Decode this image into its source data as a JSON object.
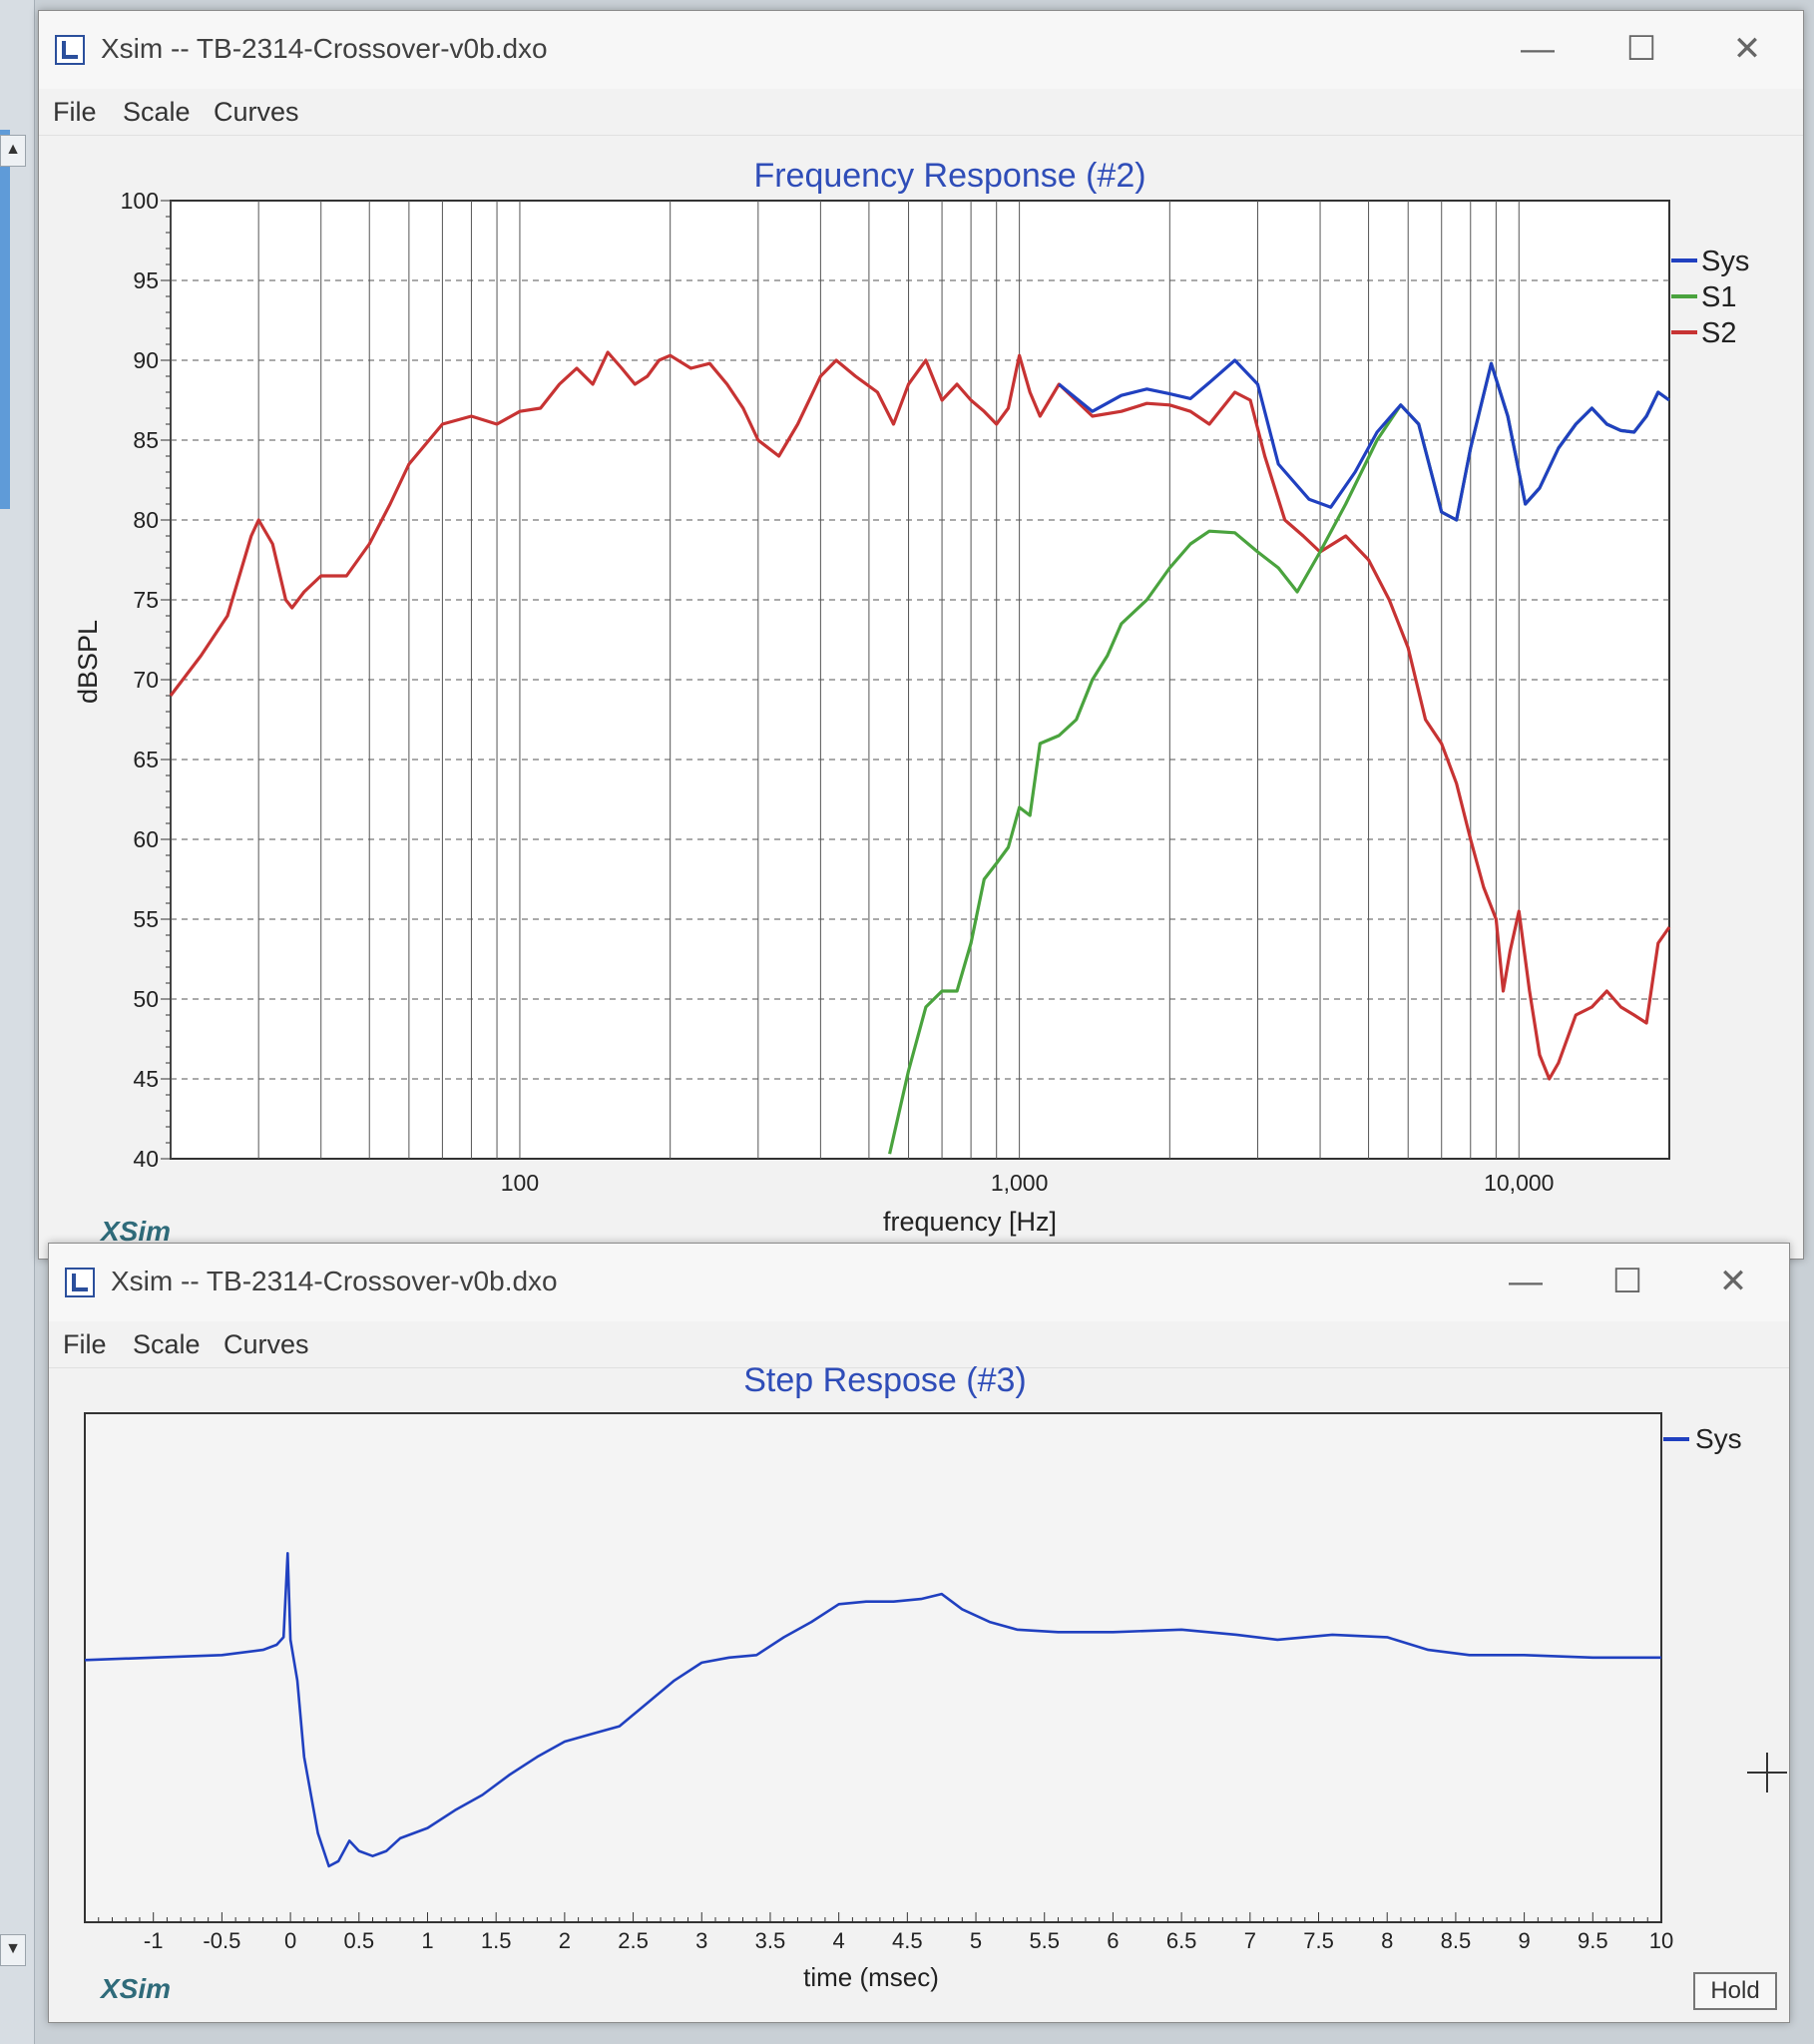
{
  "window1": {
    "title": "Xsim -- TB-2314-Crossover-v0b.dxo",
    "controls": {
      "minimize": "—",
      "maximize": "☐",
      "close": "✕"
    },
    "menu": {
      "file": "File",
      "scale": "Scale",
      "curves": "Curves"
    }
  },
  "window2": {
    "title": "Xsim -- TB-2314-Crossover-v0b.dxo",
    "controls": {
      "minimize": "—",
      "maximize": "☐",
      "close": "✕"
    },
    "menu": {
      "file": "File",
      "scale": "Scale",
      "curves": "Curves"
    },
    "hold_label": "Hold"
  },
  "colors": {
    "sys": "#2040c0",
    "s1": "#4aa33e",
    "s2": "#c73333",
    "title": "#2f4db8",
    "brand": "#2f6b7a"
  },
  "chart_data": [
    {
      "type": "line",
      "title": "Frequency Response (#2)",
      "xlabel": "frequency [Hz]",
      "ylabel": "dBSPL",
      "brand": "XSim",
      "x_scale": "log",
      "xlim": [
        20,
        20000
      ],
      "ylim": [
        40,
        100
      ],
      "grid": true,
      "legend_position": "right",
      "x_tick_labels": [
        "100",
        "1,000",
        "10,000"
      ],
      "y_ticks": [
        40,
        45,
        50,
        55,
        60,
        65,
        70,
        75,
        80,
        85,
        90,
        95,
        100
      ],
      "series": [
        {
          "name": "Sys",
          "points": [
            [
              1200,
              88.5
            ],
            [
              1400,
              86.8
            ],
            [
              1600,
              87.8
            ],
            [
              1800,
              88.2
            ],
            [
              2000,
              87.9
            ],
            [
              2200,
              87.6
            ],
            [
              2400,
              88.6
            ],
            [
              2700,
              90.0
            ],
            [
              3000,
              88.5
            ],
            [
              3300,
              83.5
            ],
            [
              3800,
              81.3
            ],
            [
              4200,
              80.8
            ],
            [
              4700,
              83.0
            ],
            [
              5200,
              85.5
            ],
            [
              5800,
              87.2
            ],
            [
              6300,
              86.0
            ],
            [
              7000,
              80.5
            ],
            [
              7500,
              80.0
            ],
            [
              8000,
              84.5
            ],
            [
              8800,
              89.8
            ],
            [
              9500,
              86.5
            ],
            [
              10300,
              81.0
            ],
            [
              11000,
              82.0
            ],
            [
              12000,
              84.5
            ],
            [
              13000,
              86.0
            ],
            [
              14000,
              87.0
            ],
            [
              15000,
              86.0
            ],
            [
              16000,
              85.6
            ],
            [
              17000,
              85.5
            ],
            [
              18000,
              86.5
            ],
            [
              19000,
              88.0
            ],
            [
              20000,
              87.5
            ]
          ]
        },
        {
          "name": "S1",
          "points": [
            [
              550,
              40.3
            ],
            [
              600,
              45.5
            ],
            [
              650,
              49.5
            ],
            [
              700,
              50.5
            ],
            [
              750,
              50.5
            ],
            [
              800,
              53.5
            ],
            [
              850,
              57.5
            ],
            [
              900,
              58.5
            ],
            [
              950,
              59.5
            ],
            [
              1000,
              62.0
            ],
            [
              1050,
              61.5
            ],
            [
              1100,
              66.0
            ],
            [
              1200,
              66.5
            ],
            [
              1300,
              67.5
            ],
            [
              1400,
              70.0
            ],
            [
              1500,
              71.5
            ],
            [
              1600,
              73.5
            ],
            [
              1800,
              75.0
            ],
            [
              2000,
              77.0
            ],
            [
              2200,
              78.5
            ],
            [
              2400,
              79.3
            ],
            [
              2700,
              79.2
            ],
            [
              3000,
              78.0
            ],
            [
              3300,
              77.0
            ],
            [
              3600,
              75.5
            ],
            [
              4000,
              78.0
            ],
            [
              4500,
              81.0
            ],
            [
              5200,
              85.0
            ],
            [
              5800,
              87.2
            ],
            [
              6300,
              86.0
            ],
            [
              7000,
              80.5
            ],
            [
              7500,
              80.0
            ],
            [
              8000,
              84.5
            ],
            [
              8800,
              89.8
            ],
            [
              9500,
              86.5
            ],
            [
              10300,
              81.0
            ],
            [
              11000,
              82.0
            ],
            [
              12000,
              84.5
            ],
            [
              13000,
              86.0
            ],
            [
              14000,
              87.0
            ],
            [
              15000,
              86.0
            ],
            [
              16000,
              85.6
            ],
            [
              17000,
              85.5
            ],
            [
              18000,
              86.5
            ],
            [
              19000,
              88.0
            ],
            [
              20000,
              87.5
            ]
          ]
        },
        {
          "name": "S2",
          "points": [
            [
              20,
              69.0
            ],
            [
              23,
              71.5
            ],
            [
              26,
              74.0
            ],
            [
              29,
              79.0
            ],
            [
              30,
              80.0
            ],
            [
              32,
              78.5
            ],
            [
              34,
              75.0
            ],
            [
              35,
              74.5
            ],
            [
              37,
              75.5
            ],
            [
              40,
              76.5
            ],
            [
              45,
              76.5
            ],
            [
              50,
              78.5
            ],
            [
              55,
              81.0
            ],
            [
              60,
              83.5
            ],
            [
              70,
              86.0
            ],
            [
              80,
              86.5
            ],
            [
              90,
              86.0
            ],
            [
              100,
              86.8
            ],
            [
              110,
              87.0
            ],
            [
              120,
              88.5
            ],
            [
              130,
              89.5
            ],
            [
              140,
              88.5
            ],
            [
              150,
              90.5
            ],
            [
              160,
              89.5
            ],
            [
              170,
              88.5
            ],
            [
              180,
              89.0
            ],
            [
              190,
              90.0
            ],
            [
              200,
              90.3
            ],
            [
              220,
              89.5
            ],
            [
              240,
              89.8
            ],
            [
              260,
              88.5
            ],
            [
              280,
              87.0
            ],
            [
              300,
              85.0
            ],
            [
              330,
              84.0
            ],
            [
              360,
              86.0
            ],
            [
              400,
              89.0
            ],
            [
              430,
              90.0
            ],
            [
              470,
              89.0
            ],
            [
              520,
              88.0
            ],
            [
              560,
              86.0
            ],
            [
              600,
              88.5
            ],
            [
              650,
              90.0
            ],
            [
              700,
              87.5
            ],
            [
              750,
              88.5
            ],
            [
              800,
              87.5
            ],
            [
              850,
              86.8
            ],
            [
              900,
              86.0
            ],
            [
              950,
              87.0
            ],
            [
              1000,
              90.3
            ],
            [
              1050,
              88.0
            ],
            [
              1100,
              86.5
            ],
            [
              1200,
              88.5
            ],
            [
              1400,
              86.5
            ],
            [
              1600,
              86.8
            ],
            [
              1800,
              87.3
            ],
            [
              2000,
              87.2
            ],
            [
              2200,
              86.8
            ],
            [
              2400,
              86.0
            ],
            [
              2700,
              88.0
            ],
            [
              2900,
              87.5
            ],
            [
              3100,
              84.0
            ],
            [
              3400,
              80.0
            ],
            [
              3700,
              79.0
            ],
            [
              4000,
              78.0
            ],
            [
              4500,
              79.0
            ],
            [
              5000,
              77.5
            ],
            [
              5500,
              75.0
            ],
            [
              6000,
              72.0
            ],
            [
              6500,
              67.5
            ],
            [
              7000,
              66.0
            ],
            [
              7500,
              63.5
            ],
            [
              8000,
              60.0
            ],
            [
              8500,
              57.0
            ],
            [
              9000,
              55.0
            ],
            [
              9300,
              50.5
            ],
            [
              9600,
              53.0
            ],
            [
              10000,
              55.5
            ],
            [
              10500,
              50.5
            ],
            [
              11000,
              46.5
            ],
            [
              11500,
              45.0
            ],
            [
              12000,
              46.0
            ],
            [
              13000,
              49.0
            ],
            [
              14000,
              49.5
            ],
            [
              15000,
              50.5
            ],
            [
              16000,
              49.5
            ],
            [
              17000,
              49.0
            ],
            [
              18000,
              48.5
            ],
            [
              19000,
              53.5
            ],
            [
              20000,
              54.5
            ]
          ]
        }
      ]
    },
    {
      "type": "line",
      "title": "Step Respose (#3)",
      "xlabel": "time (msec)",
      "brand": "XSim",
      "xlim": [
        -1.5,
        10
      ],
      "x_tick_labels": [
        "-1",
        "-0.5",
        "0",
        "0.5",
        "1",
        "1.5",
        "2",
        "2.5",
        "3",
        "3.5",
        "4",
        "4.5",
        "5",
        "5.5",
        "6",
        "6.5",
        "7",
        "7.5",
        "8",
        "8.5",
        "9",
        "9.5",
        "10"
      ],
      "y_axis_labels_visible": false,
      "ylim": [
        -1.0,
        1.0
      ],
      "grid": false,
      "legend_position": "right",
      "series": [
        {
          "name": "Sys",
          "points": [
            [
              -1.5,
              0.03
            ],
            [
              -1.0,
              0.04
            ],
            [
              -0.5,
              0.05
            ],
            [
              -0.2,
              0.07
            ],
            [
              -0.1,
              0.09
            ],
            [
              -0.05,
              0.12
            ],
            [
              -0.02,
              0.45
            ],
            [
              0.0,
              0.11
            ],
            [
              0.05,
              -0.05
            ],
            [
              0.1,
              -0.35
            ],
            [
              0.2,
              -0.65
            ],
            [
              0.28,
              -0.78
            ],
            [
              0.35,
              -0.76
            ],
            [
              0.43,
              -0.68
            ],
            [
              0.5,
              -0.72
            ],
            [
              0.6,
              -0.74
            ],
            [
              0.7,
              -0.72
            ],
            [
              0.8,
              -0.67
            ],
            [
              1.0,
              -0.63
            ],
            [
              1.2,
              -0.56
            ],
            [
              1.4,
              -0.5
            ],
            [
              1.6,
              -0.42
            ],
            [
              1.8,
              -0.35
            ],
            [
              2.0,
              -0.29
            ],
            [
              2.2,
              -0.26
            ],
            [
              2.4,
              -0.23
            ],
            [
              2.6,
              -0.14
            ],
            [
              2.8,
              -0.05
            ],
            [
              3.0,
              0.02
            ],
            [
              3.2,
              0.04
            ],
            [
              3.4,
              0.05
            ],
            [
              3.6,
              0.12
            ],
            [
              3.8,
              0.18
            ],
            [
              4.0,
              0.25
            ],
            [
              4.2,
              0.26
            ],
            [
              4.4,
              0.26
            ],
            [
              4.6,
              0.27
            ],
            [
              4.75,
              0.29
            ],
            [
              4.9,
              0.23
            ],
            [
              5.1,
              0.18
            ],
            [
              5.3,
              0.15
            ],
            [
              5.6,
              0.14
            ],
            [
              6.0,
              0.14
            ],
            [
              6.5,
              0.15
            ],
            [
              6.9,
              0.13
            ],
            [
              7.2,
              0.11
            ],
            [
              7.6,
              0.13
            ],
            [
              8.0,
              0.12
            ],
            [
              8.3,
              0.07
            ],
            [
              8.6,
              0.05
            ],
            [
              9.0,
              0.05
            ],
            [
              9.5,
              0.04
            ],
            [
              10.0,
              0.04
            ]
          ]
        }
      ]
    }
  ]
}
